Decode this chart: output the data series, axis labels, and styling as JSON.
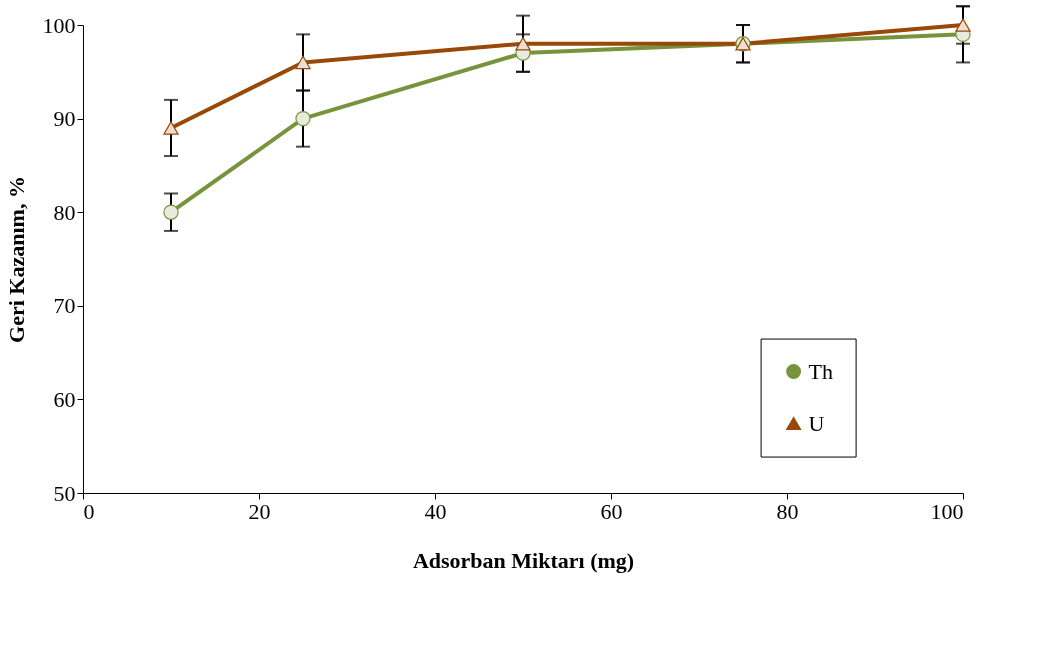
{
  "chart_data": {
    "type": "line",
    "xlabel": "Adsorban Miktarı (mg)",
    "ylabel": "Geri Kazanım, %",
    "x": [
      10,
      25,
      50,
      75,
      100
    ],
    "series": [
      {
        "name": "Th",
        "color": "#77933c",
        "marker": "circle",
        "values": [
          80,
          90,
          97,
          98,
          99
        ],
        "errors": [
          2,
          3,
          2,
          2,
          3
        ]
      },
      {
        "name": "U",
        "color": "#984807",
        "marker": "triangle",
        "values": [
          89,
          96,
          98,
          98,
          100
        ],
        "errors": [
          3,
          3,
          3,
          2,
          2
        ]
      }
    ],
    "xlim": [
      0,
      100
    ],
    "xticks": [
      0,
      20,
      40,
      60,
      80,
      100
    ],
    "ylim": [
      50,
      100
    ],
    "yticks": [
      50,
      60,
      70,
      80,
      90,
      100
    ],
    "grid": false,
    "legend": "right",
    "line_style": "solid"
  }
}
